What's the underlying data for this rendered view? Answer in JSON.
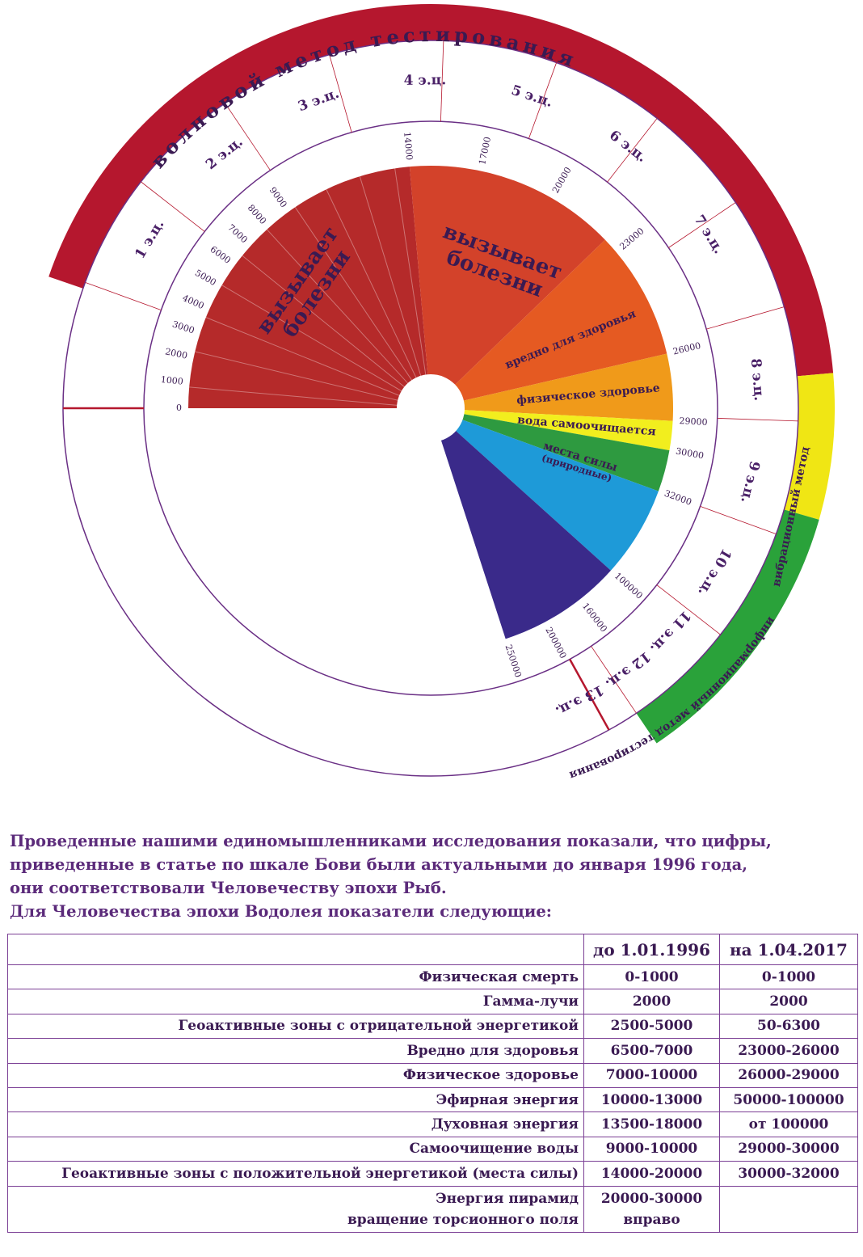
{
  "outer_bands": {
    "wave_method": "волновой метод тестирования",
    "vibration_method": "вибрационный метод",
    "information_method": "информационный метод тестирования",
    "wave_color": "#b5172e",
    "vibration_color": "#f0e614",
    "information_color": "#2aa23a"
  },
  "energy_centers": [
    "1 э.ц.",
    "2 э.ц.",
    "3 э.ц.",
    "4 э.ц.",
    "5 э.ц.",
    "6 э.ц.",
    "7 э.ц.",
    "8 э.ц.",
    "9 э.ц.",
    "10 э.ц.",
    "11 э.ц.",
    "12 э.ц.",
    "13 э.ц."
  ],
  "scale_ticks": [
    "0",
    "1000",
    "2000",
    "3000",
    "4000",
    "5000",
    "6000",
    "7000",
    "8000",
    "9000",
    "14000",
    "17000",
    "20000",
    "23000",
    "26000",
    "29000",
    "30000",
    "32000",
    "100000",
    "160000",
    "200000",
    "250000"
  ],
  "zones": [
    {
      "label": "вызывает болезни",
      "color": "#b52a2a"
    },
    {
      "label": "вызывает болезни",
      "color": "#d3422a"
    },
    {
      "label": "вредно для здоровья",
      "color": "#e55a22"
    },
    {
      "label": "физическое здоровье",
      "color": "#f09a1a"
    },
    {
      "label": "вода самоочищается",
      "color": "#f2ee1e"
    },
    {
      "label": "места силы (природные)",
      "color": "#2e9a40"
    },
    {
      "label": "",
      "color": "#1e9ad8"
    },
    {
      "label": "",
      "color": "#3a2a8a"
    }
  ],
  "intro": [
    "Проведенные нашими единомышленниками исследования показали, что цифры,",
    "приведенные в статье по шкале Бови были актуальными до января 1996 года,",
    "они соответствовали Человечеству эпохи Рыб.",
    "Для Человечества эпохи Водолея показатели следующие:"
  ],
  "table": {
    "headers": [
      "",
      "до 1.01.1996",
      "на 1.04.2017"
    ],
    "rows": [
      {
        "label": "Физическая смерть",
        "v1": "0-1000",
        "v2": "0-1000"
      },
      {
        "label": "Гамма-лучи",
        "v1": "2000",
        "v2": "2000"
      },
      {
        "label": "Геоактивные зоны с отрицательной энергетикой",
        "v1": "2500-5000",
        "v2": "50-6300"
      },
      {
        "label": "Вредно для здоровья",
        "v1": "6500-7000",
        "v2": "23000-26000"
      },
      {
        "label": "Физическое здоровье",
        "v1": "7000-10000",
        "v2": "26000-29000"
      },
      {
        "label": "Эфирная энергия",
        "v1": "10000-13000",
        "v2": "50000-100000"
      },
      {
        "label": "Духовная энергия",
        "v1": "13500-18000",
        "v2": "от 100000"
      },
      {
        "label": "Самоочищение воды",
        "v1": "9000-10000",
        "v2": "29000-30000"
      },
      {
        "label": "Геоактивные зоны с положительной энергетикой (места силы)",
        "v1": "14000-20000",
        "v2": "30000-32000"
      }
    ],
    "last_row": {
      "label_line1": "Энергия пирамид",
      "label_line2": "вращение торсионного поля",
      "v1_line1": "20000-30000",
      "v1_line2": "вправо",
      "v2": ""
    }
  }
}
